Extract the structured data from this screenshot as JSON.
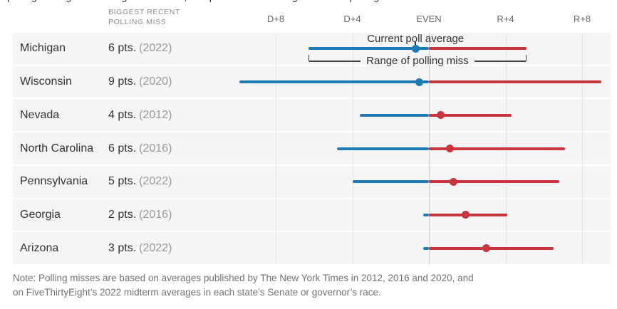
{
  "intro_clipped": "polling averages in battleground states, compared with the range of recent polling misses",
  "header": {
    "col_label_line1": "Biggest recent",
    "col_label_line2": "Polling miss"
  },
  "annotations": {
    "current_poll_average": "Current poll average",
    "range_of_polling_miss": "Range of polling miss"
  },
  "note": "Note: Polling misses are based on averages published by The New York Times in 2012, 2016 and 2020, and on FiveThirtyEight’s 2022 midterm averages in each state’s Senate or governor’s race.",
  "chart_data": {
    "type": "range-dot",
    "unit": "margin in percentage points (negative = Democratic lead, positive = Republican lead)",
    "axis_ticks": [
      {
        "label": "D+8",
        "value": -8
      },
      {
        "label": "D+4",
        "value": -4
      },
      {
        "label": "EVEN",
        "value": 0
      },
      {
        "label": "R+4",
        "value": 4
      },
      {
        "label": "R+8",
        "value": 8
      }
    ],
    "xlim": [
      -10,
      10
    ],
    "colors": {
      "dem": "#1f7bb8",
      "rep": "#c9353c"
    },
    "rows": [
      {
        "state": "Michigan",
        "miss": "6 pts.",
        "year": "(2022)",
        "avg": -0.7,
        "lo": -6.3,
        "hi": 5.1
      },
      {
        "state": "Wisconsin",
        "miss": "9 pts.",
        "year": "(2020)",
        "avg": -0.5,
        "lo": -9.9,
        "hi": 9.0
      },
      {
        "state": "Nevada",
        "miss": "4 pts.",
        "year": "(2012)",
        "avg": 0.6,
        "lo": -3.6,
        "hi": 4.3
      },
      {
        "state": "North Carolina",
        "miss": "6 pts.",
        "year": "(2016)",
        "avg": 1.1,
        "lo": -4.8,
        "hi": 7.1
      },
      {
        "state": "Pennsylvania",
        "miss": "5 pts.",
        "year": "(2022)",
        "avg": 1.3,
        "lo": -4.0,
        "hi": 6.8
      },
      {
        "state": "Georgia",
        "miss": "2 pts.",
        "year": "(2016)",
        "avg": 1.9,
        "lo": -0.3,
        "hi": 4.1
      },
      {
        "state": "Arizona",
        "miss": "3 pts.",
        "year": "(2022)",
        "avg": 3.0,
        "lo": -0.3,
        "hi": 6.5
      }
    ]
  }
}
